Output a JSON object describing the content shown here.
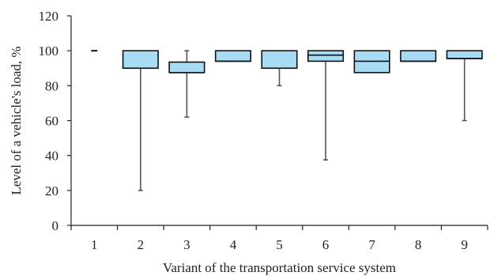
{
  "chart_data": {
    "type": "box",
    "xlabel": "Variant of the transportation service system",
    "ylabel": "Level of a vehicle's load, %",
    "ylim": [
      0,
      120
    ],
    "yticks": [
      "0",
      "20",
      "40",
      "60",
      "80",
      "100",
      "120"
    ],
    "categories": [
      "1",
      "2",
      "3",
      "4",
      "5",
      "6",
      "7",
      "8",
      "9"
    ],
    "boxes": [
      {
        "category": "1",
        "whisker_low": 100,
        "q1": 100,
        "median": 100,
        "q3": 100,
        "whisker_high": 100
      },
      {
        "category": "2",
        "whisker_low": 20,
        "q1": 90,
        "median": 90,
        "q3": 100,
        "whisker_high": 100
      },
      {
        "category": "3",
        "whisker_low": 62,
        "q1": 87.5,
        "median": 87.5,
        "q3": 93.5,
        "whisker_high": 100
      },
      {
        "category": "4",
        "whisker_low": 94,
        "q1": 94,
        "median": 94,
        "q3": 100,
        "whisker_high": 100
      },
      {
        "category": "5",
        "whisker_low": 80,
        "q1": 90,
        "median": 90,
        "q3": 100,
        "whisker_high": 100
      },
      {
        "category": "6",
        "whisker_low": 37.5,
        "q1": 94,
        "median": 97.5,
        "q3": 100,
        "whisker_high": 100
      },
      {
        "category": "7",
        "whisker_low": 87.5,
        "q1": 87.5,
        "median": 94,
        "q3": 100,
        "whisker_high": 100
      },
      {
        "category": "8",
        "whisker_low": 94,
        "q1": 94,
        "median": 94,
        "q3": 100,
        "whisker_high": 100
      },
      {
        "category": "9",
        "whisker_low": 60,
        "q1": 95.5,
        "median": 95.5,
        "q3": 100,
        "whisker_high": 100
      }
    ],
    "box_fill": "#a8dcf5",
    "box_stroke": "#111111",
    "whisker_color": "#555555",
    "grid": false
  }
}
